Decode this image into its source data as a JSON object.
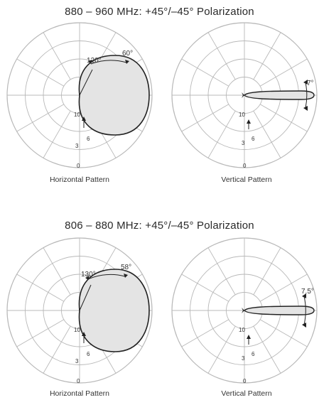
{
  "sections": [
    {
      "title": "880 – 960 MHz: +45°/–45° Polarization",
      "horizontal": {
        "label": "Horizontal Pattern",
        "angle_a": "120°",
        "angle_b": "60°",
        "ring_labels": [
          "10",
          "3",
          "6",
          "0"
        ]
      },
      "vertical": {
        "label": "Vertical Pattern",
        "angle": "7°",
        "ring_labels": [
          "10",
          "3",
          "6",
          "0"
        ]
      }
    },
    {
      "title": "806 – 880 MHz: +45°/–45° Polarization",
      "horizontal": {
        "label": "Horizontal Pattern",
        "angle_a": "130°",
        "angle_b": "58°",
        "ring_labels": [
          "10",
          "3",
          "6",
          "0"
        ]
      },
      "vertical": {
        "label": "Vertical Pattern",
        "angle": "7.5°",
        "ring_labels": [
          "10",
          "3",
          "6",
          "0"
        ]
      }
    }
  ],
  "colors": {
    "grid": "#b8b8b8",
    "lobe_fill": "#e4e4e4",
    "lobe_stroke": "#222222",
    "text": "#333333"
  }
}
